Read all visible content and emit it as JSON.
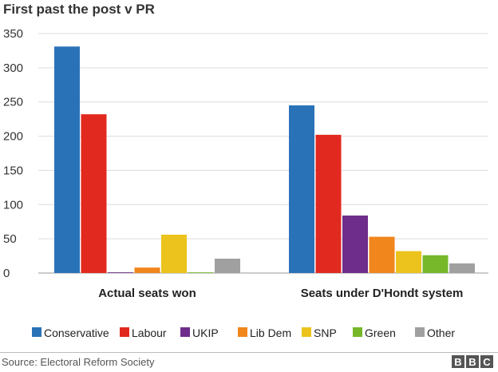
{
  "chart_data": {
    "type": "bar",
    "title": "First past the post v PR",
    "categories": [
      "Actual seats won",
      "Seats under D'Hondt system"
    ],
    "series": [
      {
        "name": "Conservative",
        "color": "#2a72b8",
        "values": [
          331,
          245
        ]
      },
      {
        "name": "Labour",
        "color": "#e2291f",
        "values": [
          232,
          202
        ]
      },
      {
        "name": "UKIP",
        "color": "#6e2d8a",
        "values": [
          1,
          84
        ]
      },
      {
        "name": "Lib Dem",
        "color": "#f0861c",
        "values": [
          8,
          53
        ]
      },
      {
        "name": "SNP",
        "color": "#ebc31c",
        "values": [
          56,
          32
        ]
      },
      {
        "name": "Green",
        "color": "#76b82a",
        "values": [
          1,
          26
        ]
      },
      {
        "name": "Other",
        "color": "#a0a0a0",
        "values": [
          21,
          14
        ]
      }
    ],
    "ylim": [
      0,
      350
    ],
    "yticks": [
      0,
      50,
      100,
      150,
      200,
      250,
      300,
      350
    ],
    "xlabel": "",
    "ylabel": "",
    "grid": true,
    "legend_position": "bottom"
  },
  "footer": {
    "source": "Source: Electoral Reform Society",
    "logo_letters": [
      "B",
      "B",
      "C"
    ]
  }
}
